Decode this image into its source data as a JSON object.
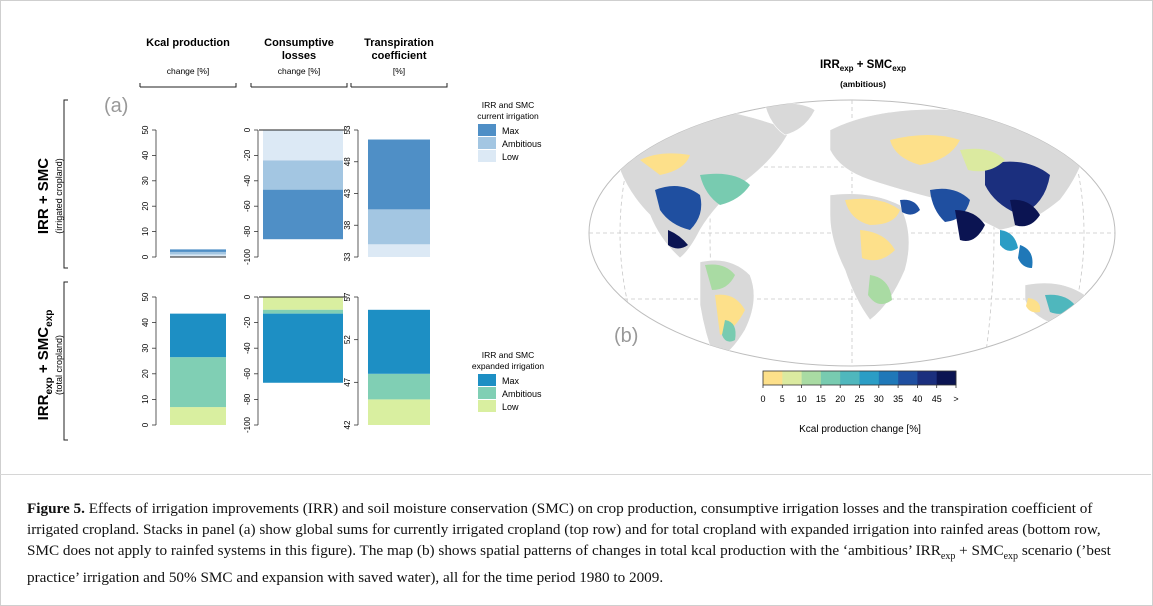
{
  "figure": {
    "panel_a_label": "(a)",
    "panel_b_label": "(b)",
    "col_headers": [
      {
        "title": [
          "Kcal production"
        ],
        "sub": "change [%]"
      },
      {
        "title": [
          "Consumptive",
          "losses"
        ],
        "sub": "change [%]"
      },
      {
        "title": [
          "Transpiration",
          "coefficient"
        ],
        "sub": "[%]"
      }
    ],
    "row_labels": [
      {
        "main": "IRR + SMC",
        "sub": "(irrigated cropland)"
      },
      {
        "main": "IRRexp + SMCexp",
        "sub": "(total cropland)"
      }
    ],
    "legend_current": {
      "title": [
        "IRR and SMC",
        "current irrigation"
      ],
      "items": [
        "Max",
        "Ambitious",
        "Low"
      ],
      "colors": [
        "#4f8fc6",
        "#a3c6e2",
        "#dce9f5"
      ]
    },
    "legend_expanded": {
      "title": [
        "IRR and SMC",
        "expanded irrigation"
      ],
      "items": [
        "Max",
        "Ambitious",
        "Low"
      ],
      "colors": [
        "#1d8fc4",
        "#80cfb4",
        "#d9efa0"
      ]
    },
    "map_title": "IRRexp + SMCexp",
    "map_subtitle": "(ambitious)",
    "colorbar_ticks": [
      "0",
      "5",
      "10",
      "15",
      "20",
      "25",
      "30",
      "35",
      "40",
      "45",
      ">"
    ],
    "colorbar_colors": [
      "#fde08a",
      "#dbeaa0",
      "#a9dba3",
      "#78cbb0",
      "#4fb7bd",
      "#2b9dc5",
      "#1f78b8",
      "#1f4fa0",
      "#1b2f7e",
      "#0b1452"
    ],
    "colorbar_label": "Kcal production change [%]"
  },
  "chart_data": [
    {
      "type": "bar",
      "panel": "kcal-current",
      "ylim": [
        0,
        50
      ],
      "yticks": [
        "0",
        "10",
        "20",
        "30",
        "40",
        "50"
      ],
      "stack": [
        {
          "name": "Low",
          "range": [
            0,
            1
          ]
        },
        {
          "name": "Ambitious",
          "range": [
            1,
            2
          ]
        },
        {
          "name": "Max",
          "range": [
            2,
            3
          ]
        }
      ]
    },
    {
      "type": "bar",
      "panel": "losses-current",
      "ylim": [
        -100,
        0
      ],
      "yticks": [
        "0",
        "-20",
        "-40",
        "-60",
        "-80",
        "-100"
      ],
      "stack": [
        {
          "name": "Low",
          "range": [
            0,
            -24
          ]
        },
        {
          "name": "Ambitious",
          "range": [
            -24,
            -47
          ]
        },
        {
          "name": "Max",
          "range": [
            -47,
            -86
          ]
        }
      ]
    },
    {
      "type": "bar",
      "panel": "transp-current",
      "ylim": [
        33,
        53
      ],
      "yticks": [
        "33",
        "38",
        "43",
        "48",
        "53"
      ],
      "stack": [
        {
          "name": "Low",
          "range": [
            33,
            35
          ]
        },
        {
          "name": "Ambitious",
          "range": [
            35,
            40.5
          ]
        },
        {
          "name": "Max",
          "range": [
            40.5,
            51.5
          ]
        }
      ]
    },
    {
      "type": "bar",
      "panel": "kcal-expanded",
      "ylim": [
        0,
        50
      ],
      "yticks": [
        "0",
        "10",
        "20",
        "30",
        "40",
        "50"
      ],
      "stack": [
        {
          "name": "Low",
          "range": [
            0,
            7
          ]
        },
        {
          "name": "Ambitious",
          "range": [
            7,
            26.5
          ]
        },
        {
          "name": "Max",
          "range": [
            26.5,
            43.5
          ]
        }
      ]
    },
    {
      "type": "bar",
      "panel": "losses-expanded",
      "ylim": [
        -100,
        0
      ],
      "yticks": [
        "0",
        "-20",
        "-40",
        "-60",
        "-80",
        "-100"
      ],
      "stack": [
        {
          "name": "Low",
          "range": [
            0,
            -10
          ]
        },
        {
          "name": "Ambitious",
          "range": [
            -10,
            -13
          ]
        },
        {
          "name": "Max",
          "range": [
            -13,
            -67
          ]
        }
      ]
    },
    {
      "type": "bar",
      "panel": "transp-expanded",
      "ylim": [
        42,
        57
      ],
      "yticks": [
        "42",
        "47",
        "52",
        "57"
      ],
      "stack": [
        {
          "name": "Low",
          "range": [
            42,
            45
          ]
        },
        {
          "name": "Ambitious",
          "range": [
            45,
            48
          ]
        },
        {
          "name": "Max",
          "range": [
            48,
            55.5
          ]
        }
      ]
    }
  ],
  "caption": {
    "label": "Figure 5.",
    "text": " Effects of irrigation improvements (IRR) and soil moisture conservation (SMC) on crop production, consumptive irrigation losses and the transpiration coefficient of irrigated cropland. Stacks in panel (a) show global sums for currently irrigated cropland (top row) and for total cropland with expanded irrigation into rainfed areas (bottom row, SMC does not apply to rainfed systems in this figure). The map (b) shows spatial patterns of changes in total kcal production with the ‘ambitious’ IRRexp + SMCexp scenario (’best practice’ irrigation and 50% SMC and expansion with saved water), all for the time period 1980 to 2009."
  }
}
